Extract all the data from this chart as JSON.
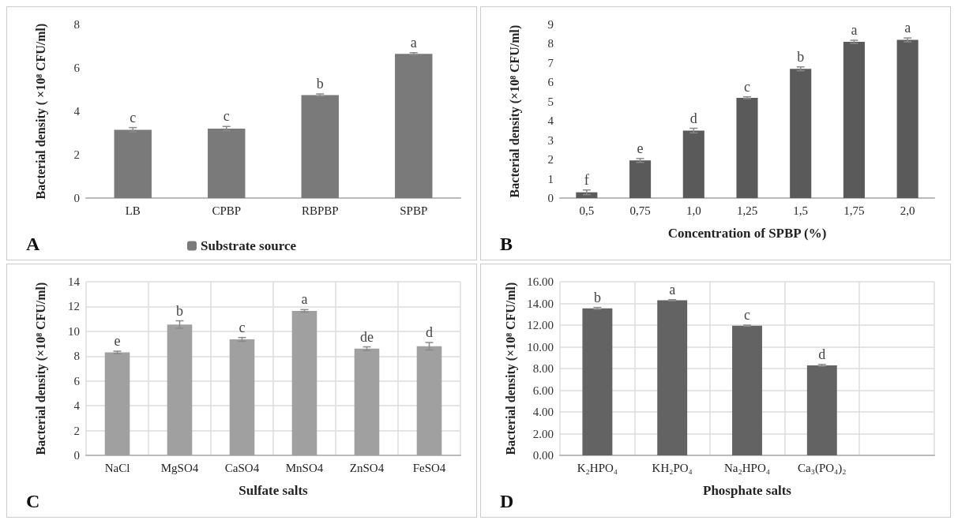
{
  "chart_data": [
    {
      "type": "bar",
      "ylabel": "Bacterial density ( ×10⁸ CFU/ml)",
      "categories": [
        "LB",
        "CPBP",
        "RBPBP",
        "SPBP"
      ],
      "series": [
        {
          "name": "Substrate source",
          "color": "#7a7a7a",
          "values": [
            3.15,
            3.2,
            4.75,
            6.65
          ],
          "errors": [
            0.1,
            0.1,
            0.05,
            0.05
          ]
        }
      ],
      "ylim": [
        0,
        8
      ],
      "yticks": [
        0,
        2,
        4,
        6,
        8
      ],
      "grid": false,
      "legend": "bottom",
      "annotations": [
        {
          "text": "c",
          "x": "LB",
          "y": 3.25
        },
        {
          "text": "c",
          "x": "CPBP",
          "y": 3.3
        },
        {
          "text": "b",
          "x": "RBPBP",
          "y": 4.8
        },
        {
          "text": "a",
          "x": "SPBP",
          "y": 6.7
        },
        "A"
      ]
    },
    {
      "type": "bar",
      "ylabel": "Bacterial density (×10⁸ CFU/ml)",
      "xlabel": "Concentration of SPBP (%)",
      "categories": [
        "0,5",
        "0,75",
        "1,0",
        "1,25",
        "1,5",
        "1,75",
        "2,0"
      ],
      "series": [
        {
          "color": "#5a5a5a",
          "values": [
            0.3,
            1.95,
            3.5,
            5.2,
            6.7,
            8.1,
            8.2
          ],
          "errors": [
            0.12,
            0.1,
            0.12,
            0.05,
            0.1,
            0.08,
            0.1
          ]
        }
      ],
      "ylim": [
        0,
        9
      ],
      "yticks": [
        0,
        1,
        2,
        3,
        4,
        5,
        6,
        7,
        8,
        9
      ],
      "grid": false,
      "annotations": [
        {
          "text": "f",
          "x": "0,5",
          "y": 0.42
        },
        {
          "text": "e",
          "x": "0,75",
          "y": 2.05
        },
        {
          "text": "d",
          "x": "1,0",
          "y": 3.62
        },
        {
          "text": "c",
          "x": "1,25",
          "y": 5.25
        },
        {
          "text": "b",
          "x": "1,5",
          "y": 6.8
        },
        {
          "text": "a",
          "x": "1,75",
          "y": 8.18
        },
        {
          "text": "a",
          "x": "2,0",
          "y": 8.3
        },
        "B"
      ]
    },
    {
      "type": "bar",
      "ylabel": "Bacterial density (×10⁸ CFU/ml)",
      "xlabel": "Sulfate salts",
      "categories": [
        "NaCl",
        "MgSO4",
        "CaSO4",
        "MnSO4",
        "ZnSO4",
        "FeSO4"
      ],
      "series": [
        {
          "color": "#a0a0a0",
          "values": [
            8.3,
            10.55,
            9.35,
            11.65,
            8.6,
            8.8
          ],
          "errors": [
            0.1,
            0.3,
            0.15,
            0.1,
            0.15,
            0.3
          ]
        }
      ],
      "ylim": [
        0,
        14
      ],
      "yticks": [
        0,
        2,
        4,
        6,
        8,
        10,
        12,
        14
      ],
      "grid": true,
      "annotations": [
        {
          "text": "e",
          "x": "NaCl",
          "y": 8.4
        },
        {
          "text": "b",
          "x": "MgSO4",
          "y": 10.85
        },
        {
          "text": "c",
          "x": "CaSO4",
          "y": 9.5
        },
        {
          "text": "a",
          "x": "MnSO4",
          "y": 11.75
        },
        {
          "text": "de",
          "x": "ZnSO4",
          "y": 8.75
        },
        {
          "text": "d",
          "x": "FeSO4",
          "y": 9.1
        },
        "C"
      ]
    },
    {
      "type": "bar",
      "ylabel": "Bacterial density (×10⁸ CFU/ml)",
      "xlabel": "Phosphate salts",
      "categories": [
        "K₂HPO₄",
        "KH₂PO₄",
        "Na₂HPO₄",
        "Ca₃(PO₄)₂",
        null
      ],
      "series": [
        {
          "color": "#636363",
          "values": [
            13.55,
            14.3,
            11.95,
            8.3,
            null
          ],
          "errors": [
            0.08,
            0.05,
            0.05,
            0.08,
            null
          ]
        }
      ],
      "ylim": [
        0,
        16
      ],
      "yticks": [
        {
          "value": 0,
          "label": "0.00"
        },
        {
          "value": 2,
          "label": "2.00"
        },
        {
          "value": 4,
          "label": "4.00"
        },
        {
          "value": 6,
          "label": "6.00"
        },
        {
          "value": 8,
          "label": "8.00"
        },
        {
          "value": 10,
          "label": "10.00"
        },
        {
          "value": 12,
          "label": "12.00"
        },
        {
          "value": 14,
          "label": "14.00"
        },
        {
          "value": 16,
          "label": "16.00"
        }
      ],
      "grid": true,
      "annotations": [
        {
          "text": "b",
          "x": "K₂HPO₄",
          "y": 13.63
        },
        {
          "text": "a",
          "x": "KH₂PO₄",
          "y": 14.35
        },
        {
          "text": "c",
          "x": "Na₂HPO₄",
          "y": 12.0
        },
        {
          "text": "d",
          "x": "Ca₃(PO₄)₂",
          "y": 8.38
        },
        "D"
      ]
    }
  ]
}
